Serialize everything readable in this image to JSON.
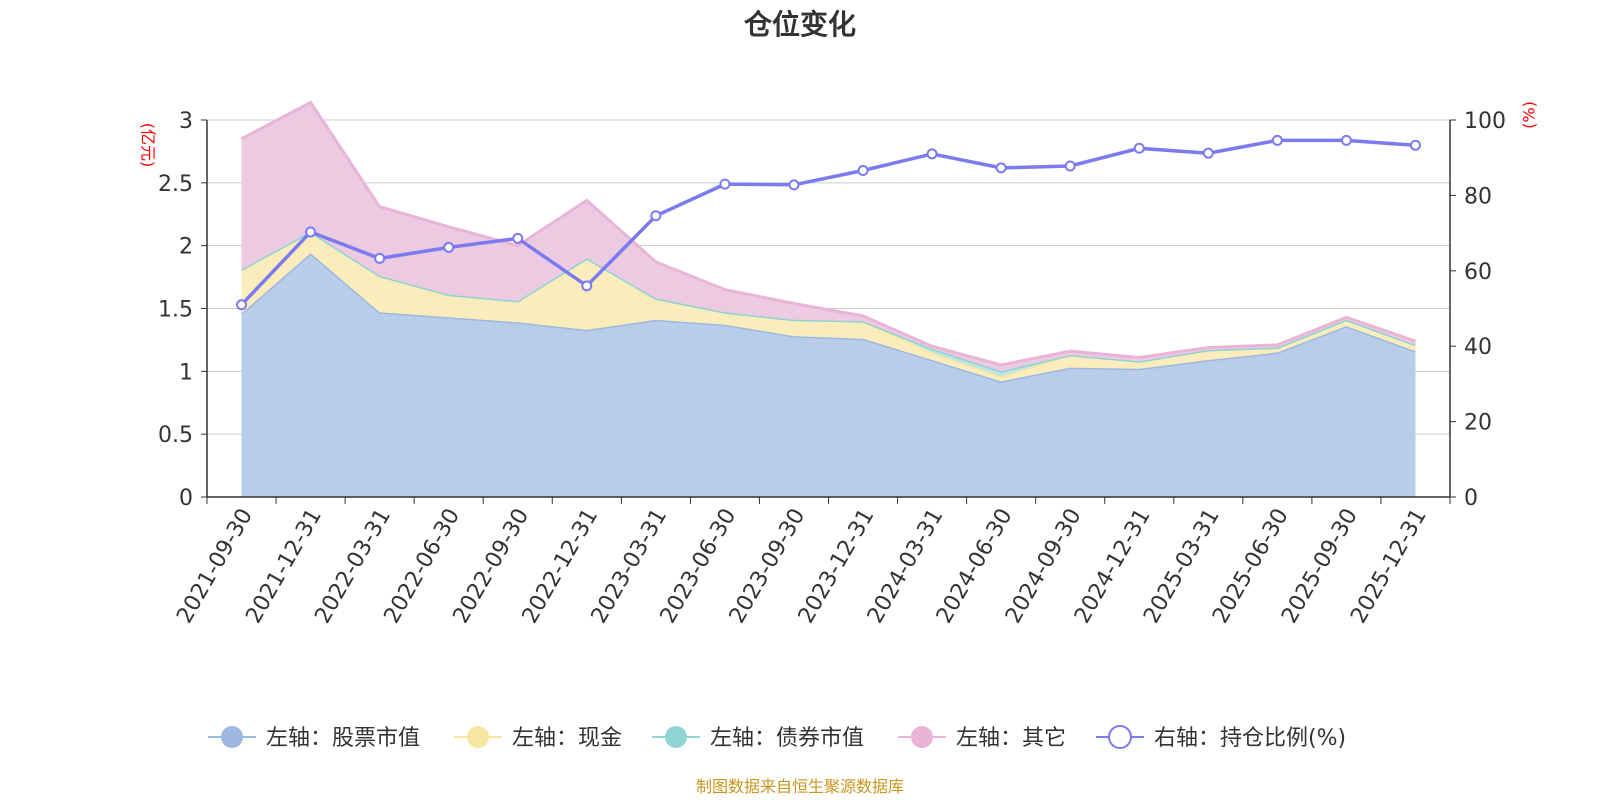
{
  "chart_data": {
    "type": "area",
    "title": "仓位变化",
    "categories": [
      "2021-09-30",
      "2021-12-31",
      "2022-03-31",
      "2022-06-30",
      "2022-09-30",
      "2022-12-31",
      "2023-03-31",
      "2023-06-30",
      "2023-09-30",
      "2023-12-31",
      "2024-03-31",
      "2024-06-30",
      "2024-09-30",
      "2024-12-31",
      "2025-03-31",
      "2025-06-30",
      "2025-09-30",
      "2025-12-31"
    ],
    "left_axis": {
      "unit": "(亿元)",
      "ylim": [
        0,
        3
      ],
      "ticks": [
        0,
        0.5,
        1,
        1.5,
        2,
        2.5,
        3
      ],
      "tick_labels": [
        "0",
        "0.5",
        "1",
        "1.5",
        "2",
        "2.5",
        "3"
      ]
    },
    "right_axis": {
      "unit": "(%)",
      "ylim": [
        0,
        100
      ],
      "ticks": [
        0,
        20,
        40,
        60,
        80,
        100
      ],
      "tick_labels": [
        "0",
        "20",
        "40",
        "60",
        "80",
        "100"
      ]
    },
    "series": [
      {
        "name": "左轴：股票市值",
        "axis": "left",
        "stacked": true,
        "color": "#9db8e0",
        "fill": "#b8cdea",
        "values": [
          1.46,
          1.94,
          1.47,
          1.43,
          1.39,
          1.33,
          1.41,
          1.37,
          1.28,
          1.26,
          1.09,
          0.92,
          1.03,
          1.02,
          1.09,
          1.15,
          1.36,
          1.16
        ]
      },
      {
        "name": "左轴：现金",
        "axis": "left",
        "stacked": true,
        "color": "#f7e6a0",
        "fill": "#fbedbb",
        "values": [
          0.35,
          0.17,
          0.29,
          0.18,
          0.17,
          0.57,
          0.17,
          0.1,
          0.13,
          0.14,
          0.06,
          0.04,
          0.1,
          0.06,
          0.08,
          0.04,
          0.05,
          0.05
        ]
      },
      {
        "name": "左轴：债券市值",
        "axis": "left",
        "stacked": true,
        "color": "#8fd3d3",
        "fill": "#bfe6e6",
        "values": [
          0,
          0,
          0,
          0,
          0,
          0,
          0,
          0,
          0,
          0,
          0.03,
          0.04,
          0,
          0,
          0,
          0,
          0,
          0
        ]
      },
      {
        "name": "左轴：其它",
        "axis": "left",
        "stacked": true,
        "color": "#e8b4d8",
        "fill": "#eccae2",
        "values": [
          1.04,
          1.03,
          0.55,
          0.54,
          0.44,
          0.46,
          0.29,
          0.18,
          0.13,
          0.04,
          0.02,
          0.05,
          0.03,
          0.03,
          0.02,
          0.02,
          0.02,
          0.03
        ]
      },
      {
        "name": "右轴：持仓比例(%)",
        "axis": "right",
        "type": "line",
        "color": "#7b7bef",
        "values": [
          51,
          70.3,
          63.3,
          66.2,
          68.6,
          56,
          74.6,
          83,
          82.8,
          86.6,
          91,
          87.3,
          87.8,
          92.5,
          91.2,
          94.6,
          94.6,
          93.3
        ]
      }
    ],
    "legend": {
      "position": "bottom",
      "labels": [
        "左轴：股票市值",
        "左轴：现金",
        "左轴：债券市值",
        "左轴：其它",
        "右轴：持仓比例(%)"
      ]
    },
    "grid": true,
    "source_note": "制图数据来自恒生聚源数据库"
  }
}
